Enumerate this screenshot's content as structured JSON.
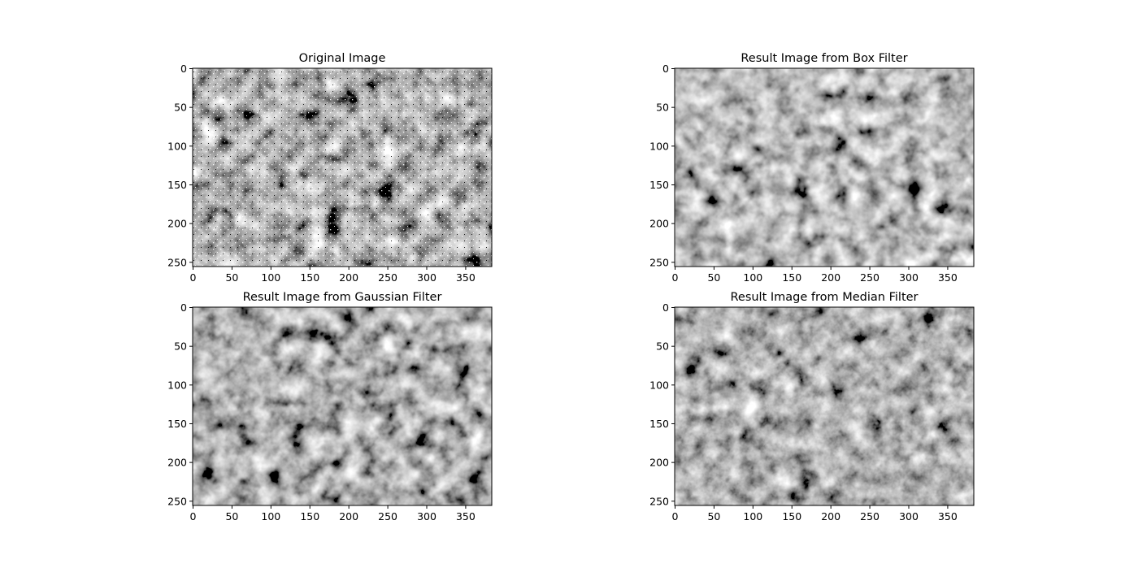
{
  "chart_data": [
    {
      "type": "image",
      "title": "Original Image",
      "variant": "noisy",
      "x_ticks": [
        0,
        50,
        100,
        150,
        200,
        250,
        300,
        350
      ],
      "y_ticks": [
        0,
        50,
        100,
        150,
        200,
        250
      ],
      "xlim": [
        0,
        384
      ],
      "ylim": [
        256,
        0
      ]
    },
    {
      "type": "image",
      "title": "Result Image from Box Filter",
      "variant": "box",
      "x_ticks": [
        0,
        50,
        100,
        150,
        200,
        250,
        300,
        350
      ],
      "y_ticks": [
        0,
        50,
        100,
        150,
        200,
        250
      ],
      "xlim": [
        0,
        384
      ],
      "ylim": [
        256,
        0
      ]
    },
    {
      "type": "image",
      "title": "Result Image from Gaussian Filter",
      "variant": "gaussian",
      "x_ticks": [
        0,
        50,
        100,
        150,
        200,
        250,
        300,
        350
      ],
      "y_ticks": [
        0,
        50,
        100,
        150,
        200,
        250
      ],
      "xlim": [
        0,
        384
      ],
      "ylim": [
        256,
        0
      ]
    },
    {
      "type": "image",
      "title": "Result Image from Median Filter",
      "variant": "median",
      "x_ticks": [
        0,
        50,
        100,
        150,
        200,
        250,
        300,
        350
      ],
      "y_ticks": [
        0,
        50,
        100,
        150,
        200,
        250
      ],
      "xlim": [
        0,
        384
      ],
      "ylim": [
        256,
        0
      ]
    }
  ],
  "colormap": "gray"
}
